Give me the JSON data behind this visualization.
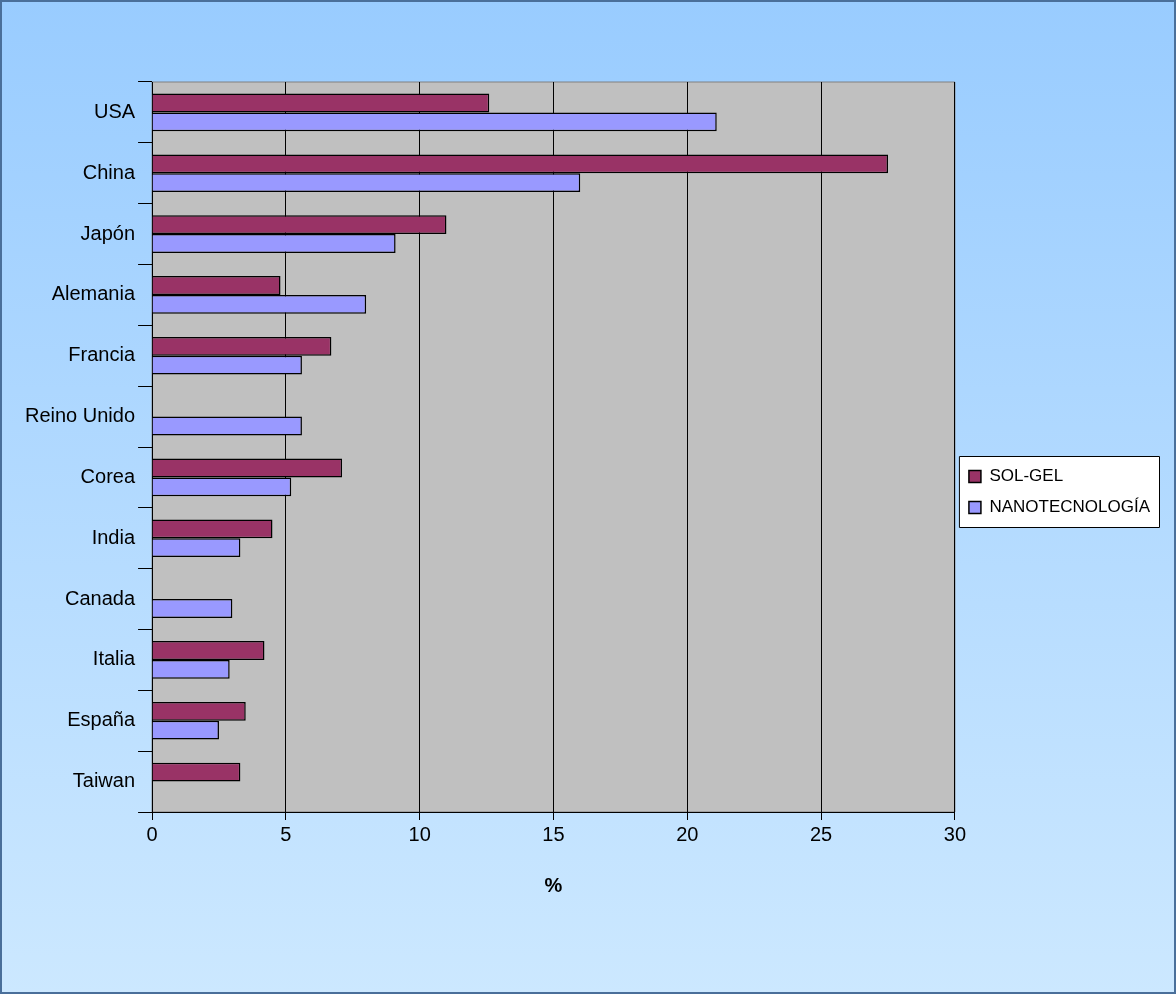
{
  "chart_data": {
    "type": "bar",
    "orientation": "horizontal",
    "xlabel": "%",
    "categories": [
      "USA",
      "China",
      "Japón",
      "Alemania",
      "Francia",
      "Reino Unido",
      "Corea",
      "India",
      "Canada",
      "Italia",
      "España",
      "Taiwan"
    ],
    "series": [
      {
        "name": "SOL-GEL",
        "color": "#993366",
        "values": [
          12.6,
          27.5,
          11.0,
          4.8,
          6.7,
          null,
          7.1,
          4.5,
          null,
          4.2,
          3.5,
          3.3
        ]
      },
      {
        "name": "NANOTECNOLOGÍA",
        "color": "#9999ff",
        "values": [
          21.1,
          16.0,
          9.1,
          8.0,
          5.6,
          5.6,
          5.2,
          3.3,
          3.0,
          2.9,
          2.5,
          null
        ]
      }
    ],
    "xlim": [
      0,
      30
    ],
    "xticks": [
      0,
      5,
      10,
      15,
      20,
      25,
      30
    ],
    "grid": "x",
    "legend": "right"
  }
}
